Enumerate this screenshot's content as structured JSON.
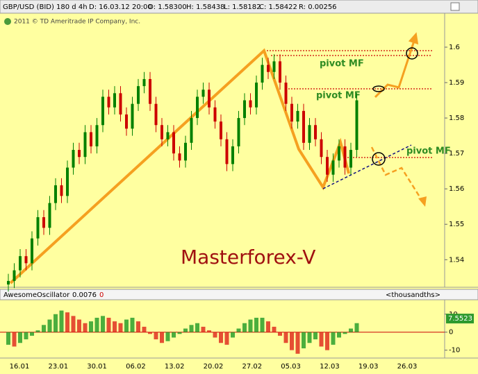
{
  "header": {
    "symbol": "GBP/USD (BID) 180 d 4h",
    "date": "D: 16.03.12 20:00",
    "open": "O: 1.58300",
    "high": "H: 1.58438",
    "low": "L: 1.58182",
    "close": "C: 1.58422",
    "range": "R: 0.00256",
    "copyright": "2011 © TD Ameritrade IP Company, Inc."
  },
  "annotations": {
    "pivot_1": "pivot MF",
    "pivot_2": "pivot MF",
    "pivot_3": "pivot MF",
    "brand": "Masterforex-V"
  },
  "x_labels": [
    "16.01",
    "23.01",
    "30.01",
    "06.02",
    "13.02",
    "20.02",
    "27.02",
    "05.03",
    "12.03",
    "19.03",
    "26.03"
  ],
  "chart_data": [
    {
      "type": "candlestick",
      "up_color": "#008000",
      "down_color": "#cc0000",
      "grid": false,
      "ylim": [
        1.533,
        1.6094
      ],
      "yticks": [
        1.54,
        1.55,
        1.56,
        1.57,
        1.58,
        1.59,
        1.6
      ],
      "candles": [
        [
          1.533,
          1.536,
          1.531,
          1.534
        ],
        [
          1.534,
          1.539,
          1.532,
          1.537
        ],
        [
          1.537,
          1.543,
          1.535,
          1.541
        ],
        [
          1.541,
          1.543,
          1.537,
          1.539
        ],
        [
          1.539,
          1.548,
          1.537,
          1.546
        ],
        [
          1.546,
          1.554,
          1.544,
          1.552
        ],
        [
          1.552,
          1.554,
          1.547,
          1.549
        ],
        [
          1.549,
          1.558,
          1.547,
          1.556
        ],
        [
          1.556,
          1.563,
          1.554,
          1.561
        ],
        [
          1.561,
          1.563,
          1.556,
          1.558
        ],
        [
          1.558,
          1.568,
          1.556,
          1.566
        ],
        [
          1.566,
          1.573,
          1.564,
          1.571
        ],
        [
          1.571,
          1.573,
          1.567,
          1.569
        ],
        [
          1.569,
          1.578,
          1.567,
          1.576
        ],
        [
          1.576,
          1.578,
          1.57,
          1.572
        ],
        [
          1.572,
          1.58,
          1.57,
          1.578
        ],
        [
          1.578,
          1.588,
          1.576,
          1.586
        ],
        [
          1.586,
          1.588,
          1.581,
          1.583
        ],
        [
          1.583,
          1.589,
          1.581,
          1.587
        ],
        [
          1.587,
          1.589,
          1.579,
          1.581
        ],
        [
          1.581,
          1.583,
          1.575,
          1.577
        ],
        [
          1.577,
          1.586,
          1.575,
          1.584
        ],
        [
          1.584,
          1.591,
          1.582,
          1.589
        ],
        [
          1.589,
          1.593,
          1.587,
          1.591
        ],
        [
          1.591,
          1.593,
          1.582,
          1.584
        ],
        [
          1.584,
          1.586,
          1.576,
          1.578
        ],
        [
          1.578,
          1.58,
          1.572,
          1.574
        ],
        [
          1.574,
          1.578,
          1.572,
          1.576
        ],
        [
          1.576,
          1.578,
          1.568,
          1.57
        ],
        [
          1.57,
          1.572,
          1.566,
          1.568
        ],
        [
          1.568,
          1.575,
          1.566,
          1.573
        ],
        [
          1.573,
          1.582,
          1.571,
          1.58
        ],
        [
          1.58,
          1.588,
          1.578,
          1.586
        ],
        [
          1.586,
          1.59,
          1.584,
          1.588
        ],
        [
          1.588,
          1.59,
          1.581,
          1.583
        ],
        [
          1.583,
          1.585,
          1.577,
          1.579
        ],
        [
          1.579,
          1.581,
          1.572,
          1.574
        ],
        [
          1.574,
          1.576,
          1.565,
          1.567
        ],
        [
          1.567,
          1.574,
          1.565,
          1.572
        ],
        [
          1.572,
          1.582,
          1.57,
          1.58
        ],
        [
          1.58,
          1.587,
          1.578,
          1.585
        ],
        [
          1.585,
          1.587,
          1.581,
          1.583
        ],
        [
          1.583,
          1.592,
          1.581,
          1.59
        ],
        [
          1.59,
          1.597,
          1.588,
          1.595
        ],
        [
          1.595,
          1.597,
          1.591,
          1.593
        ],
        [
          1.593,
          1.598,
          1.591,
          1.596
        ],
        [
          1.596,
          1.598,
          1.588,
          1.59
        ],
        [
          1.59,
          1.592,
          1.582,
          1.584
        ],
        [
          1.584,
          1.586,
          1.577,
          1.579
        ],
        [
          1.579,
          1.584,
          1.577,
          1.582
        ],
        [
          1.582,
          1.584,
          1.571,
          1.573
        ],
        [
          1.573,
          1.58,
          1.571,
          1.578
        ],
        [
          1.578,
          1.58,
          1.572,
          1.574
        ],
        [
          1.574,
          1.576,
          1.567,
          1.569
        ],
        [
          1.569,
          1.571,
          1.562,
          1.564
        ],
        [
          1.564,
          1.57,
          1.562,
          1.568
        ],
        [
          1.568,
          1.574,
          1.566,
          1.572
        ],
        [
          1.572,
          1.574,
          1.564,
          1.566
        ],
        [
          1.566,
          1.573,
          1.564,
          1.571
        ],
        [
          1.571,
          1.587,
          1.569,
          1.585
        ]
      ]
    },
    {
      "type": "bar",
      "title": "AwesomeOscillator",
      "reading": "0.0076",
      "offset": "0",
      "unit_label": "<thousandths>",
      "up_color": "#2ca02c",
      "down_color": "#e03020",
      "zero_color": "#cc0000",
      "ylim": [
        -14,
        18
      ],
      "yticks": [
        10,
        0,
        -10
      ],
      "last_value": 7.5523,
      "values": [
        -7,
        -8,
        -6,
        -4,
        -2,
        1,
        4,
        7,
        10,
        12,
        11,
        9,
        7,
        5,
        6,
        8,
        9,
        8,
        6,
        5,
        7,
        8,
        6,
        3,
        -1,
        -4,
        -6,
        -5,
        -3,
        -1,
        2,
        4,
        5,
        3,
        1,
        -3,
        -6,
        -7,
        -3,
        2,
        5,
        7,
        8,
        8,
        6,
        3,
        -2,
        -6,
        -10,
        -12,
        -9,
        -6,
        -4,
        -8,
        -10,
        -7,
        -3,
        -1,
        2,
        5
      ]
    }
  ]
}
